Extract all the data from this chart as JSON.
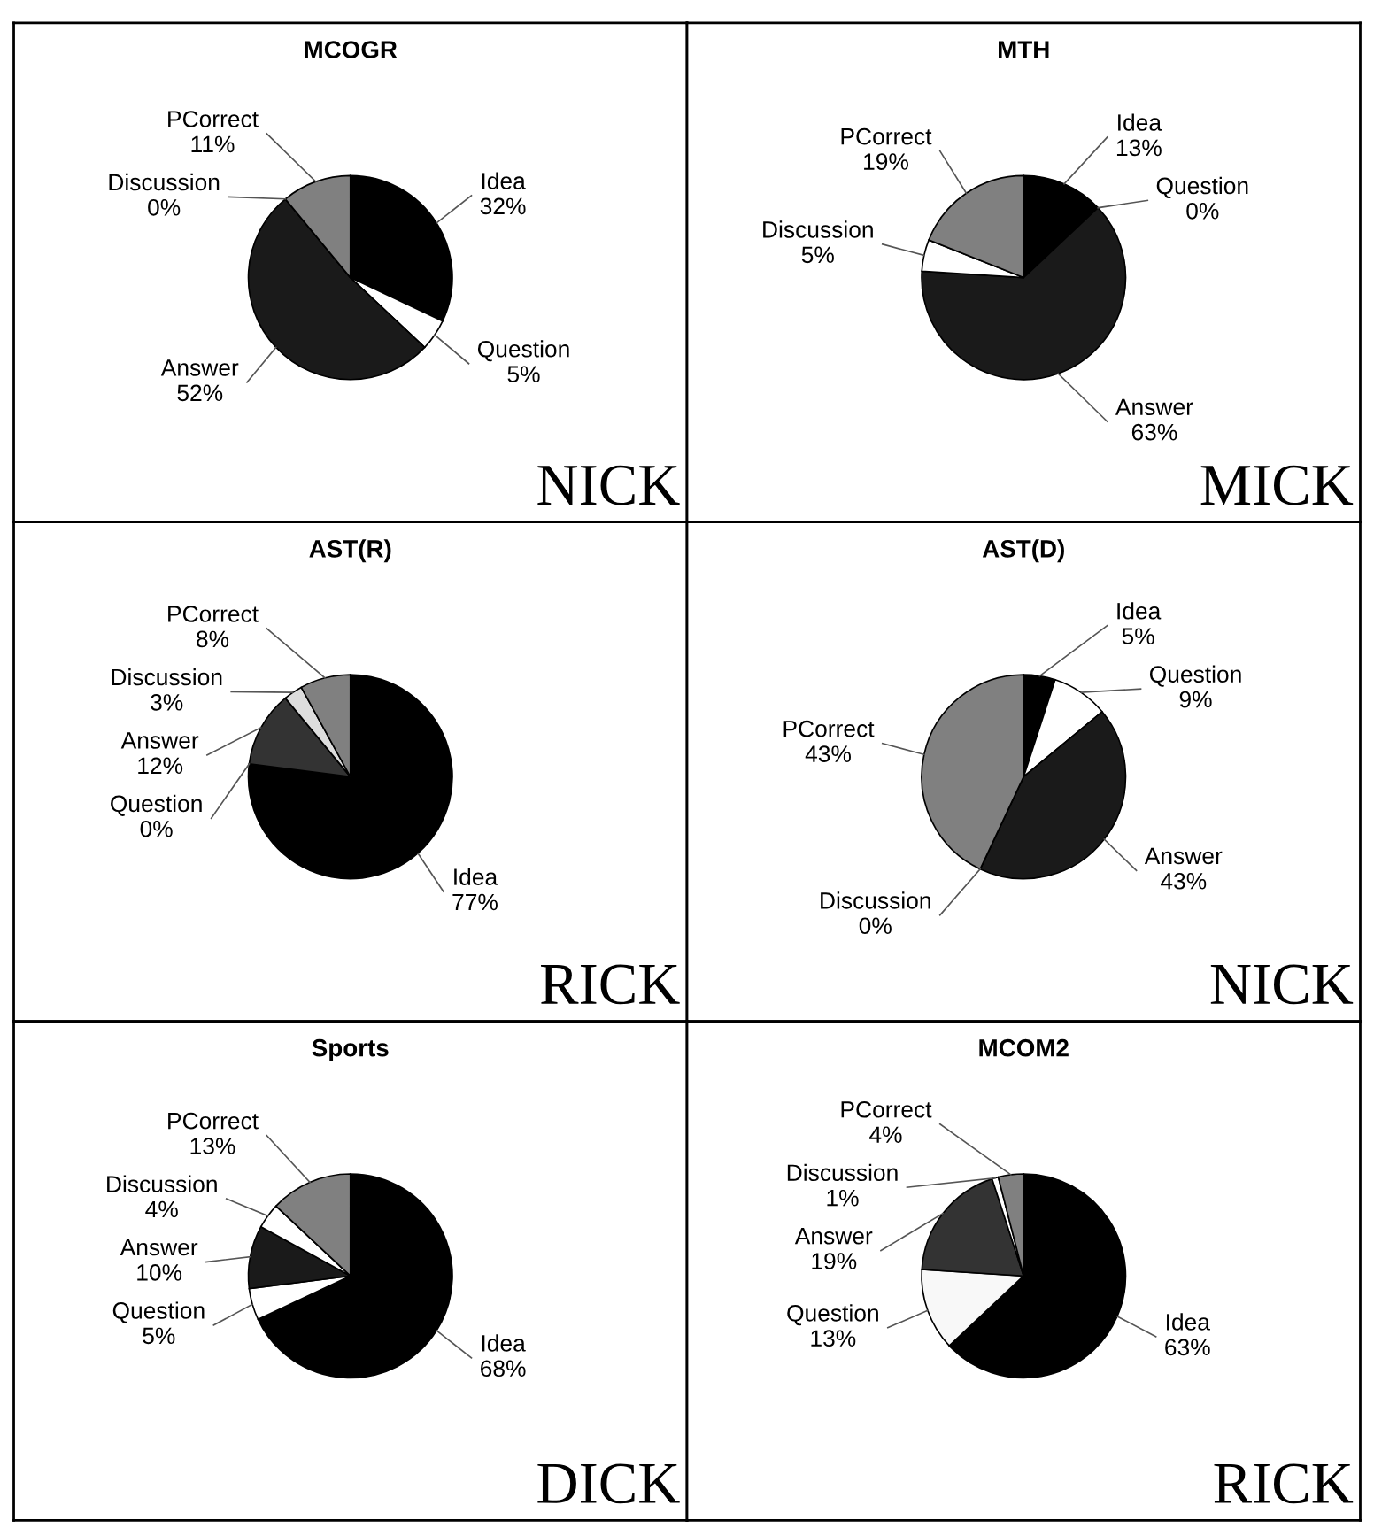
{
  "chart_data": [
    {
      "type": "pie",
      "title": "MCOGR",
      "categories": [
        "Idea",
        "Question",
        "Answer",
        "Discussion",
        "PCorrect"
      ],
      "values": [
        32,
        5,
        52,
        0,
        11
      ],
      "value_labels": [
        "32%",
        "5%",
        "52%",
        "0%",
        "11%"
      ],
      "colors": [
        "#000000",
        "#ffffff",
        "#1a1a1a",
        "#ffffff",
        "#808080"
      ],
      "annotations": [
        "NICK"
      ]
    },
    {
      "type": "pie",
      "title": "MTH",
      "categories": [
        "Idea",
        "Question",
        "Answer",
        "Discussion",
        "PCorrect"
      ],
      "values": [
        13,
        0,
        63,
        5,
        19
      ],
      "value_labels": [
        "13%",
        "0%",
        "63%",
        "5%",
        "19%"
      ],
      "colors": [
        "#000000",
        "#ffffff",
        "#1a1a1a",
        "#ffffff",
        "#808080"
      ],
      "annotations": [
        "MICK"
      ]
    },
    {
      "type": "pie",
      "title": "AST(R)",
      "categories": [
        "Idea",
        "Question",
        "Answer",
        "Discussion",
        "PCorrect"
      ],
      "values": [
        77,
        0,
        12,
        3,
        8
      ],
      "value_labels": [
        "77%",
        "0%",
        "12%",
        "3%",
        "8%"
      ],
      "colors": [
        "#000000",
        "#ffffff",
        "#333333",
        "#dddddd",
        "#808080"
      ],
      "annotations": [
        "RICK"
      ]
    },
    {
      "type": "pie",
      "title": "AST(D)",
      "categories": [
        "Idea",
        "Question",
        "Answer",
        "Discussion",
        "PCorrect"
      ],
      "values": [
        5,
        9,
        43,
        0,
        43
      ],
      "value_labels": [
        "5%",
        "9%",
        "43%",
        "0%",
        "43%"
      ],
      "colors": [
        "#000000",
        "#ffffff",
        "#1a1a1a",
        "#ffffff",
        "#808080"
      ],
      "annotations": [
        "NICK"
      ]
    },
    {
      "type": "pie",
      "title": "Sports",
      "categories": [
        "Idea",
        "Question",
        "Answer",
        "Discussion",
        "PCorrect"
      ],
      "values": [
        68,
        5,
        10,
        4,
        13
      ],
      "value_labels": [
        "68%",
        "5%",
        "10%",
        "4%",
        "13%"
      ],
      "colors": [
        "#000000",
        "#ffffff",
        "#1a1a1a",
        "#ffffff",
        "#808080"
      ],
      "annotations": [
        "DICK"
      ]
    },
    {
      "type": "pie",
      "title": "MCOM2",
      "categories": [
        "Idea",
        "Question",
        "Answer",
        "Discussion",
        "PCorrect"
      ],
      "values": [
        63,
        13,
        19,
        1,
        4
      ],
      "value_labels": [
        "63%",
        "13%",
        "19%",
        "1%",
        "4%"
      ],
      "colors": [
        "#000000",
        "#f8f8f8",
        "#333333",
        "#ffffff",
        "#808080"
      ],
      "annotations": [
        "RICK"
      ]
    }
  ]
}
